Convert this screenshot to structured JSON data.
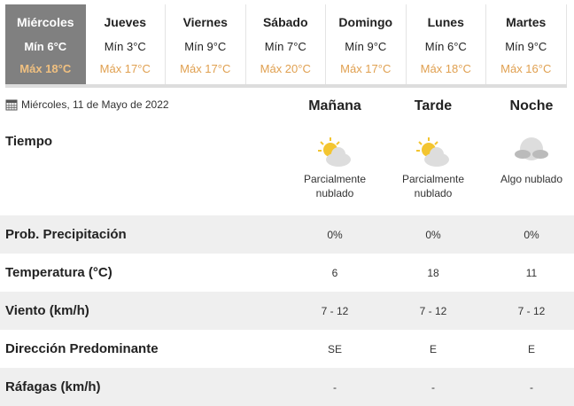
{
  "days": [
    {
      "day": "Miércoles",
      "min": "Mín 6°C",
      "max": "Máx 18°C"
    },
    {
      "day": "Jueves",
      "min": "Mín 3°C",
      "max": "Máx 17°C"
    },
    {
      "day": "Viernes",
      "min": "Mín 9°C",
      "max": "Máx 17°C"
    },
    {
      "day": "Sábado",
      "min": "Mín 7°C",
      "max": "Máx 20°C"
    },
    {
      "day": "Domingo",
      "min": "Mín 9°C",
      "max": "Máx 17°C"
    },
    {
      "day": "Lunes",
      "min": "Mín 6°C",
      "max": "Máx 18°C"
    },
    {
      "day": "Martes",
      "min": "Mín 9°C",
      "max": "Máx 16°C"
    }
  ],
  "date": "Miércoles, 11 de Mayo de 2022",
  "periods": [
    "Mañana",
    "Tarde",
    "Noche"
  ],
  "tiempo_label": "Tiempo",
  "weather": [
    {
      "icon": "partly-cloudy-day-icon",
      "text": "Parcialmente nublado"
    },
    {
      "icon": "partly-cloudy-day-icon",
      "text": "Parcialmente nublado"
    },
    {
      "icon": "cloudy-night-icon",
      "text": "Algo nublado"
    }
  ],
  "rows": [
    {
      "label": "Prob. Precipitación",
      "values": [
        "0%",
        "0%",
        "0%"
      ]
    },
    {
      "label": "Temperatura (°C)",
      "values": [
        "6",
        "18",
        "11"
      ]
    },
    {
      "label": "Viento (km/h)",
      "values": [
        "7 - 12",
        "7 - 12",
        "7 - 12"
      ]
    },
    {
      "label": "Dirección Predominante",
      "values": [
        "SE",
        "E",
        "E"
      ]
    },
    {
      "label": "Ráfagas (km/h)",
      "values": [
        "-",
        "-",
        "-"
      ]
    }
  ]
}
